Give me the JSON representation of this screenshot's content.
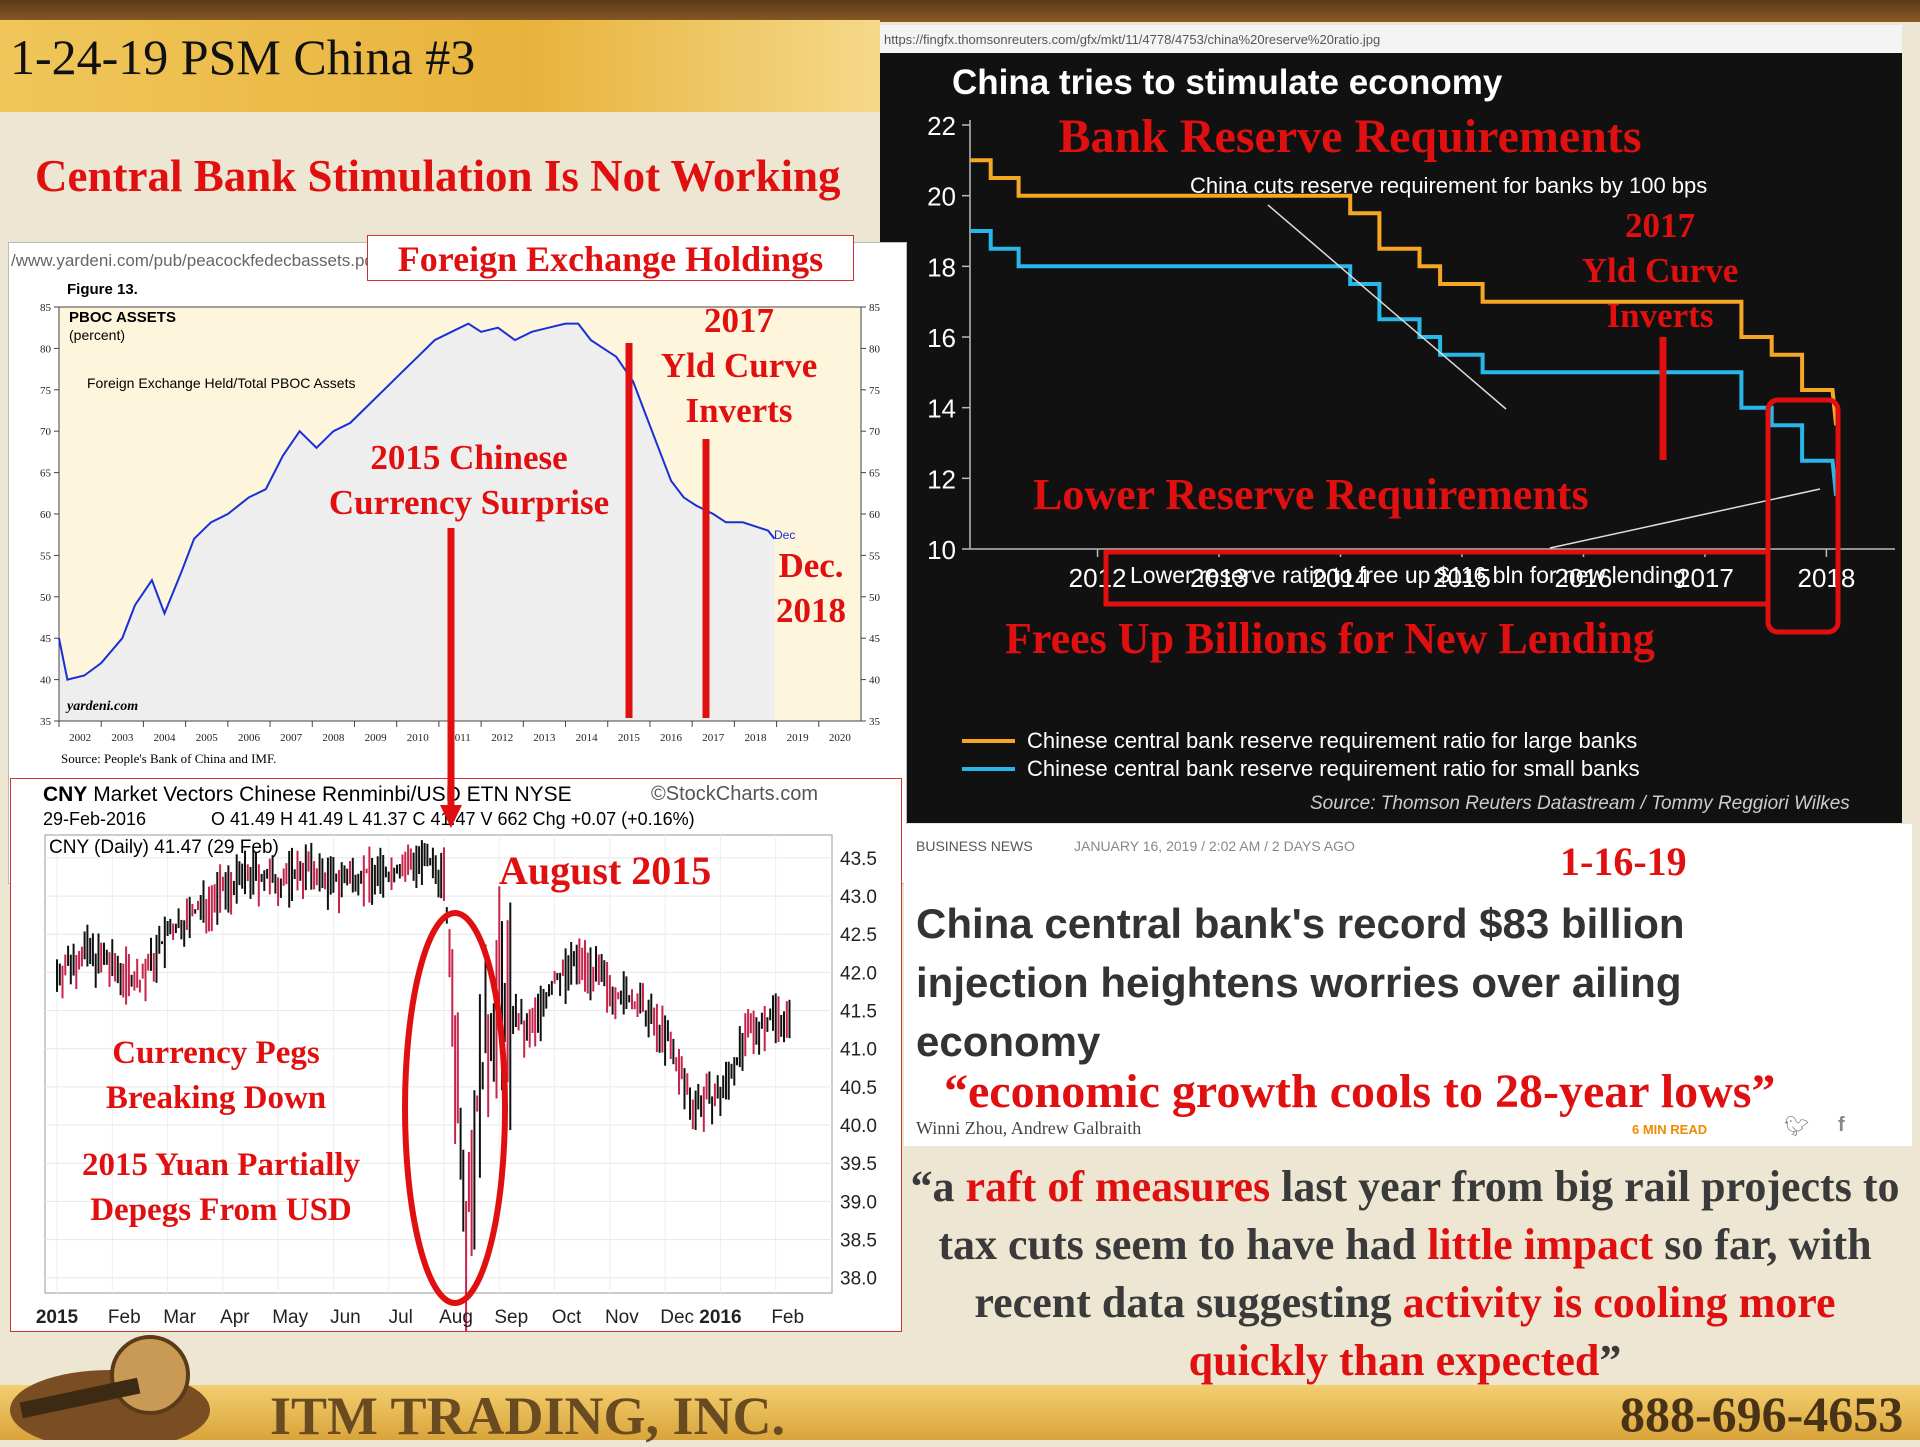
{
  "slide": {
    "title": "1-24-19 PSM China #3",
    "headline": "Central Bank Stimulation Is Not Working",
    "company": "ITM TRADING, INC.",
    "phone": "888-696-4653"
  },
  "colors": {
    "red": "#e01010",
    "orange": "#f5a623",
    "cyan": "#29b6e8",
    "blue": "#1a2fd6"
  },
  "reserve_chart": {
    "url": "https://fingfx.thomsonreuters.com/gfx/mkt/11/4778/4753/china%20reserve%20ratio.jpg",
    "title": "China tries to stimulate economy",
    "annotations": {
      "bank_reserve": "Bank Reserve Requirements",
      "cut_note": "China cuts reserve requirement for banks by 100 bps",
      "yld_1": "2017",
      "yld_2": "Yld Curve",
      "yld_3": "Inverts",
      "lower_reserve": "Lower Reserve Requirements",
      "free_note": "Lower reserve ratio to free up $116 bln for new lending",
      "frees_up": "Frees Up Billions for New Lending"
    },
    "source": "Source: Thomson Reuters Datastream / Tommy Reggiori Wilkes",
    "chart_data": {
      "type": "line",
      "title": "China tries to stimulate economy",
      "ylim": [
        10,
        22
      ],
      "yticks": [
        "22",
        "20",
        "18",
        "16",
        "14",
        "12",
        "10"
      ],
      "xticks": [
        "2012",
        "2013",
        "2014",
        "2015",
        "2016",
        "2017",
        "2018"
      ],
      "xlim": [
        2011.45,
        2018.9
      ],
      "series": [
        {
          "name": "Chinese central bank reserve requirement ratio for large banks",
          "color": "#f5a623",
          "points": [
            [
              2011.45,
              21
            ],
            [
              2011.62,
              21
            ],
            [
              2011.62,
              20.5
            ],
            [
              2011.85,
              20.5
            ],
            [
              2011.85,
              20
            ],
            [
              2014.58,
              20
            ],
            [
              2014.58,
              19.5
            ],
            [
              2014.82,
              19.5
            ],
            [
              2014.82,
              18.5
            ],
            [
              2015.15,
              18.5
            ],
            [
              2015.15,
              18
            ],
            [
              2015.32,
              18
            ],
            [
              2015.32,
              17.5
            ],
            [
              2015.67,
              17.5
            ],
            [
              2015.67,
              17
            ],
            [
              2016.17,
              17
            ],
            [
              2016.17,
              17
            ],
            [
              2017.8,
              17
            ],
            [
              2017.8,
              16
            ],
            [
              2018.05,
              16
            ],
            [
              2018.05,
              15.5
            ],
            [
              2018.3,
              15.5
            ],
            [
              2018.3,
              14.5
            ],
            [
              2018.55,
              14.5
            ],
            [
              2018.58,
              13.5
            ]
          ]
        },
        {
          "name": "Chinese central bank reserve requirement ratio for small banks",
          "color": "#29b6e8",
          "points": [
            [
              2011.45,
              19
            ],
            [
              2011.62,
              19
            ],
            [
              2011.62,
              18.5
            ],
            [
              2011.85,
              18.5
            ],
            [
              2011.85,
              18
            ],
            [
              2014.58,
              18
            ],
            [
              2014.58,
              17.5
            ],
            [
              2014.82,
              17.5
            ],
            [
              2014.82,
              16.5
            ],
            [
              2015.15,
              16.5
            ],
            [
              2015.15,
              16
            ],
            [
              2015.32,
              16
            ],
            [
              2015.32,
              15.5
            ],
            [
              2015.67,
              15.5
            ],
            [
              2015.67,
              15
            ],
            [
              2017.8,
              15
            ],
            [
              2017.8,
              14
            ],
            [
              2018.05,
              14
            ],
            [
              2018.05,
              13.5
            ],
            [
              2018.3,
              13.5
            ],
            [
              2018.3,
              12.5
            ],
            [
              2018.55,
              12.5
            ],
            [
              2018.58,
              11.5
            ]
          ]
        }
      ]
    }
  },
  "fx_chart": {
    "url": "/www.yardeni.com/pub/peacockfedecbassets.pd",
    "box_title": "Foreign Exchange Holdings",
    "figure": "Figure 13.",
    "label1": "PBOC ASSETS",
    "label2": "(percent)",
    "inner_label": "Foreign Exchange Held/Total PBOC Assets",
    "dec_tag": "Dec",
    "brand": "yardeni.com",
    "source": "Source: People's Bank of China and IMF.",
    "annotations": {
      "surprise_1": "2015 Chinese",
      "surprise_2": "Currency Surprise",
      "yld_1": "2017",
      "yld_2": "Yld Curve",
      "yld_3": "Inverts",
      "dec_1": "Dec.",
      "dec_2": "2018"
    },
    "chart_data": {
      "type": "line",
      "title": "PBOC ASSETS",
      "ylim": [
        35,
        85
      ],
      "yticks": [
        "85",
        "80",
        "75",
        "70",
        "65",
        "60",
        "55",
        "50",
        "45",
        "40",
        "35"
      ],
      "xticks": [
        "2002",
        "2003",
        "2004",
        "2005",
        "2006",
        "2007",
        "2008",
        "2009",
        "2010",
        "2011",
        "2012",
        "2013",
        "2014",
        "2015",
        "2016",
        "2017",
        "2018",
        "2019",
        "2020"
      ],
      "xlim": [
        2002,
        2021
      ],
      "series": [
        {
          "name": "Foreign Exchange Held/Total PBOC Assets",
          "points": [
            [
              2002,
              45
            ],
            [
              2002.2,
              40
            ],
            [
              2002.6,
              40.5
            ],
            [
              2003,
              42
            ],
            [
              2003.5,
              45
            ],
            [
              2003.8,
              49
            ],
            [
              2004.2,
              52
            ],
            [
              2004.5,
              48
            ],
            [
              2004.9,
              53
            ],
            [
              2005.2,
              57
            ],
            [
              2005.6,
              59
            ],
            [
              2006,
              60
            ],
            [
              2006.5,
              62
            ],
            [
              2006.9,
              63
            ],
            [
              2007.3,
              67
            ],
            [
              2007.7,
              70
            ],
            [
              2008.1,
              68
            ],
            [
              2008.5,
              70
            ],
            [
              2008.9,
              71
            ],
            [
              2009.3,
              73
            ],
            [
              2009.7,
              75
            ],
            [
              2010.1,
              77
            ],
            [
              2010.5,
              79
            ],
            [
              2010.9,
              81
            ],
            [
              2011.3,
              82
            ],
            [
              2011.7,
              83
            ],
            [
              2012,
              82
            ],
            [
              2012.4,
              82.5
            ],
            [
              2012.8,
              81
            ],
            [
              2013.2,
              82
            ],
            [
              2013.6,
              82.5
            ],
            [
              2014,
              83
            ],
            [
              2014.3,
              83
            ],
            [
              2014.6,
              81
            ],
            [
              2014.9,
              80
            ],
            [
              2015.2,
              79
            ],
            [
              2015.6,
              76
            ],
            [
              2015.9,
              72
            ],
            [
              2016.2,
              68
            ],
            [
              2016.5,
              64
            ],
            [
              2016.8,
              62
            ],
            [
              2017.1,
              61
            ],
            [
              2017.5,
              60
            ],
            [
              2017.8,
              59
            ],
            [
              2018.2,
              59
            ],
            [
              2018.5,
              58.5
            ],
            [
              2018.8,
              58
            ],
            [
              2018.95,
              57
            ]
          ]
        }
      ]
    }
  },
  "cny_chart": {
    "ticker": "CNY",
    "name": "Market Vectors Chinese Renminbi/USD ETN NYSE",
    "brand": "©StockCharts.com",
    "date": "29-Feb-2016",
    "ohlc": "O 41.49  H 41.49  L 41.37  C 41.47  V 662  Chg +0.07 (+0.16%)",
    "legend": "CNY (Daily) 41.47 (29 Feb)",
    "annotations": {
      "aug": "August 2015",
      "pegs_1": "Currency Pegs",
      "pegs_2": "Breaking Down",
      "depeg_1": "2015 Yuan Partially",
      "depeg_2": "Depegs From USD"
    },
    "chart_data": {
      "type": "bar",
      "title": "CNY (Daily) 41.47 (29 Feb)",
      "ylim": [
        37.8,
        43.8
      ],
      "yticks": [
        "43.5",
        "43.0",
        "42.5",
        "42.0",
        "41.5",
        "41.0",
        "40.5",
        "40.0",
        "39.5",
        "39.0",
        "38.5",
        "38.0"
      ],
      "xticks": [
        "2015",
        "Feb",
        "Mar",
        "Apr",
        "May",
        "Jun",
        "Jul",
        "Aug",
        "Sep",
        "Oct",
        "Nov",
        "Dec",
        "2016",
        "Feb"
      ],
      "levels": [
        [
          0,
          42
        ],
        [
          0.5,
          42.3
        ],
        [
          1,
          42.1
        ],
        [
          1.5,
          41.9
        ],
        [
          2,
          42.5
        ],
        [
          2.5,
          42.8
        ],
        [
          3,
          43.1
        ],
        [
          3.5,
          43.3
        ],
        [
          4,
          43.2
        ],
        [
          4.5,
          43.4
        ],
        [
          5,
          43.2
        ],
        [
          5.5,
          43.3
        ],
        [
          6,
          43.3
        ],
        [
          6.5,
          43.5
        ],
        [
          7,
          43.3
        ],
        [
          7.2,
          41.2
        ],
        [
          7.4,
          39.0
        ],
        [
          7.7,
          40.8
        ],
        [
          8,
          41.8
        ],
        [
          8.5,
          41.2
        ],
        [
          9,
          41.9
        ],
        [
          9.5,
          42.2
        ],
        [
          10,
          41.8
        ],
        [
          10.5,
          41.6
        ],
        [
          11,
          41.2
        ],
        [
          11.5,
          40.3
        ],
        [
          12,
          40.4
        ],
        [
          12.5,
          41.2
        ],
        [
          13,
          41.5
        ],
        [
          13.3,
          41.3
        ]
      ]
    }
  },
  "news": {
    "category": "BUSINESS NEWS",
    "dateline": "JANUARY 16, 2019 / 2:02 AM / 2 DAYS AGO",
    "date_tag": "1-16-19",
    "headline_1": "China central bank's record $83 billion",
    "headline_2": "injection heightens worries over ailing",
    "headline_3": "economy",
    "pull_quote": "“economic growth cools to 28-year lows”",
    "byline": "Winni Zhou, Andrew Galbraith",
    "read": "6 MIN READ"
  },
  "quote": {
    "p1": "“a ",
    "h1": "raft of measures",
    "p2": " last year from big rail projects to tax cuts seem to have had ",
    "h2": "little impact",
    "p3": " so far, with recent data suggesting ",
    "h3": "activity is cooling more quickly than expected",
    "p4": "”"
  }
}
